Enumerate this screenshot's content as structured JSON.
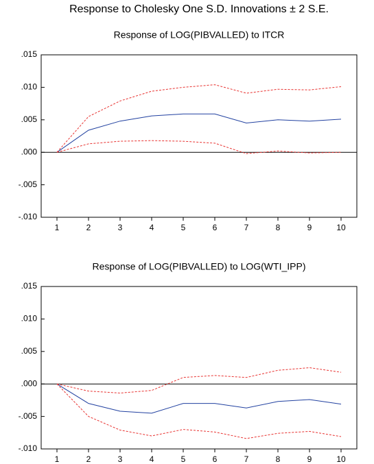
{
  "title": "Response to Cholesky One S.D. Innovations ± 2 S.E.",
  "chart_data": [
    {
      "type": "line",
      "title": "Response of LOG(PIBVALLED) to ITCR",
      "x": [
        1,
        2,
        3,
        4,
        5,
        6,
        7,
        8,
        9,
        10
      ],
      "xlim": [
        0.5,
        10.5
      ],
      "xticks": [
        1,
        2,
        3,
        4,
        5,
        6,
        7,
        8,
        9,
        10
      ],
      "ylim": [
        -0.01,
        0.015
      ],
      "yticks": [
        {
          "value": -0.01,
          "label": "-.010"
        },
        {
          "value": -0.005,
          "label": "-.005"
        },
        {
          "value": 0,
          "label": ".000"
        },
        {
          "value": 0.005,
          "label": ".005"
        },
        {
          "value": 0.01,
          "label": ".010"
        },
        {
          "value": 0.015,
          "label": ".015"
        }
      ],
      "series": [
        {
          "color": "#1f3f9f",
          "dash": false,
          "values": [
            0,
            0.0034,
            0.0048,
            0.0056,
            0.0059,
            0.0059,
            0.0045,
            0.005,
            0.0048,
            0.0051
          ]
        },
        {
          "color": "#e8312f",
          "dash": true,
          "values": [
            0,
            0.0055,
            0.0079,
            0.0094,
            0.01,
            0.0104,
            0.0091,
            0.0097,
            0.0096,
            0.0101
          ]
        },
        {
          "color": "#e8312f",
          "dash": true,
          "values": [
            0,
            0.0013,
            0.0017,
            0.0018,
            0.0017,
            0.0014,
            -0.0002,
            0.0002,
            -0.0001,
            0
          ]
        }
      ]
    },
    {
      "type": "line",
      "title": "Response of LOG(PIBVALLED) to LOG(WTI_IPP)",
      "x": [
        1,
        2,
        3,
        4,
        5,
        6,
        7,
        8,
        9,
        10
      ],
      "xlim": [
        0.5,
        10.5
      ],
      "xticks": [
        1,
        2,
        3,
        4,
        5,
        6,
        7,
        8,
        9,
        10
      ],
      "ylim": [
        -0.01,
        0.015
      ],
      "yticks": [
        {
          "value": -0.01,
          "label": "-.010"
        },
        {
          "value": -0.005,
          "label": "-.005"
        },
        {
          "value": 0,
          "label": ".000"
        },
        {
          "value": 0.005,
          "label": ".005"
        },
        {
          "value": 0.01,
          "label": ".010"
        },
        {
          "value": 0.015,
          "label": ".015"
        }
      ],
      "series": [
        {
          "color": "#1f3f9f",
          "dash": false,
          "values": [
            0,
            -0.003,
            -0.0042,
            -0.0045,
            -0.003,
            -0.003,
            -0.0037,
            -0.0027,
            -0.0024,
            -0.0031
          ]
        },
        {
          "color": "#e8312f",
          "dash": true,
          "values": [
            0,
            -0.0011,
            -0.0014,
            -0.001,
            0.001,
            0.0013,
            0.001,
            0.0021,
            0.0025,
            0.0018
          ]
        },
        {
          "color": "#e8312f",
          "dash": true,
          "values": [
            0,
            -0.005,
            -0.0071,
            -0.008,
            -0.007,
            -0.0074,
            -0.0084,
            -0.0076,
            -0.0073,
            -0.0081
          ]
        }
      ]
    }
  ]
}
